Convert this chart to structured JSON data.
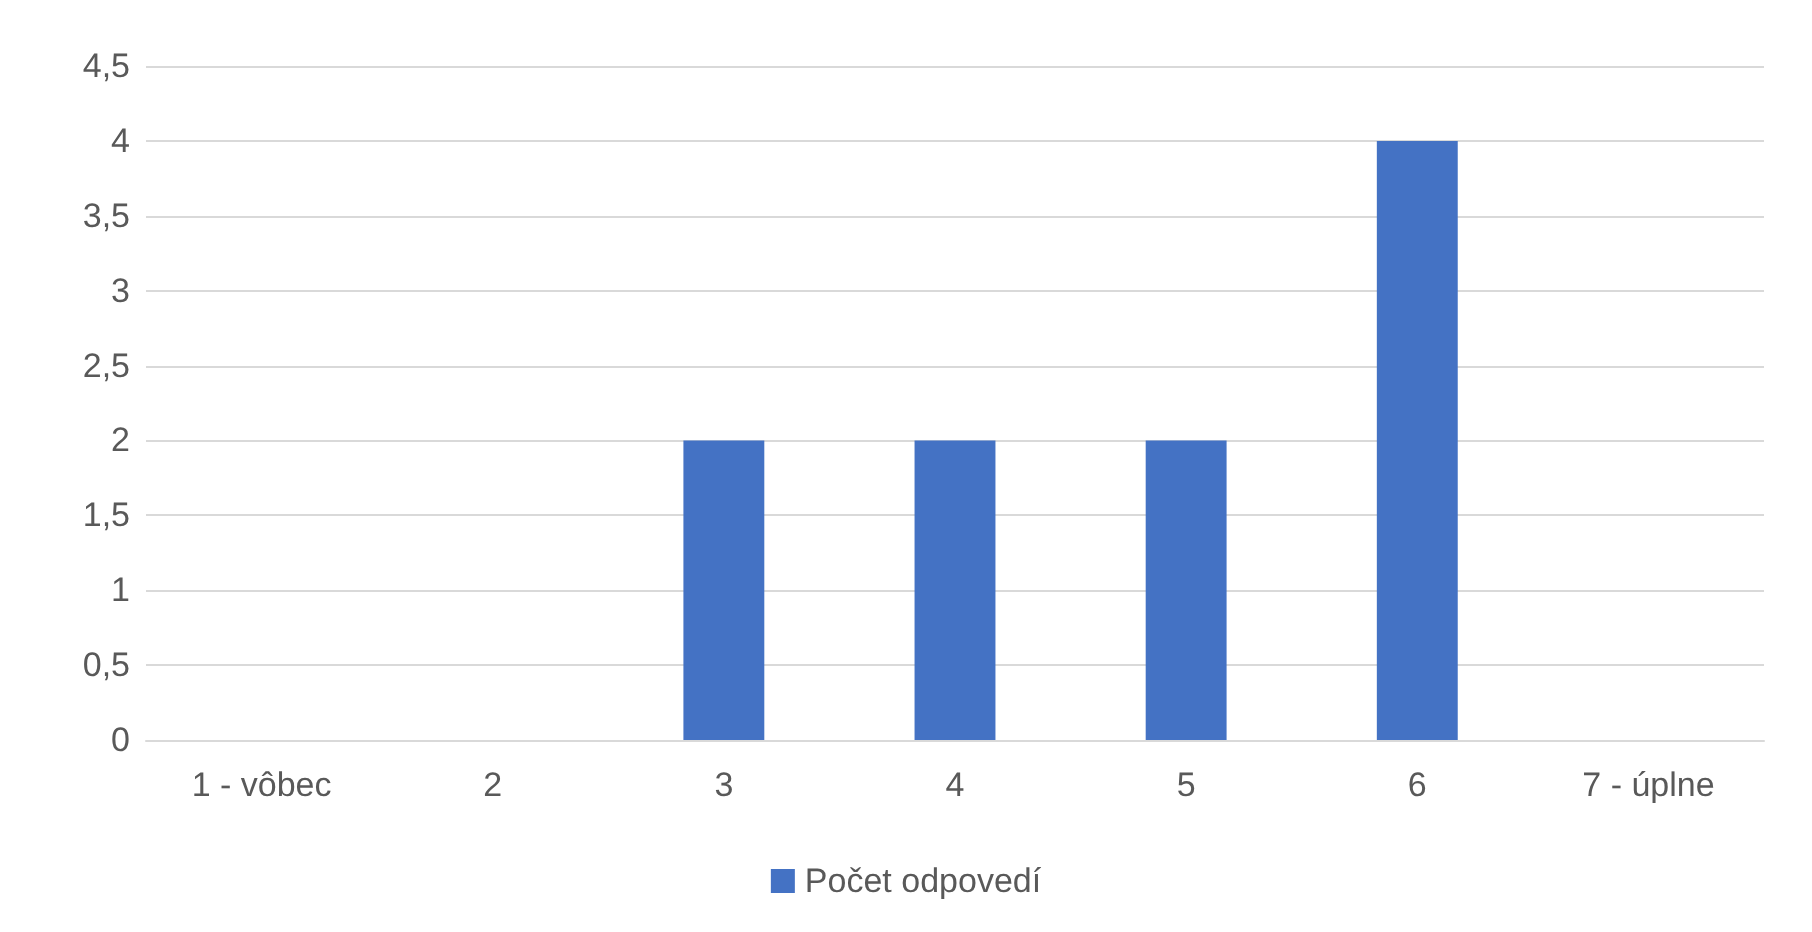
{
  "chart_data": {
    "type": "bar",
    "categories": [
      "1 - vôbec",
      "2",
      "3",
      "4",
      "5",
      "6",
      "7 - úplne"
    ],
    "series": [
      {
        "name": "Počet odpovedí",
        "color": "#4472c4",
        "values": [
          0,
          0,
          2,
          2,
          2,
          4,
          0
        ]
      }
    ],
    "ylim": [
      0,
      4.5
    ],
    "yticks": [
      0,
      {
        "value": 0.5,
        "label": "0,5"
      },
      1,
      {
        "value": 1.5,
        "label": "1,5"
      },
      2,
      {
        "value": 2.5,
        "label": "2,5"
      },
      3,
      {
        "value": 3.5,
        "label": "3,5"
      },
      4,
      {
        "value": 4.5,
        "label": "4,5"
      }
    ],
    "grid": "y",
    "legend": "bottom"
  }
}
